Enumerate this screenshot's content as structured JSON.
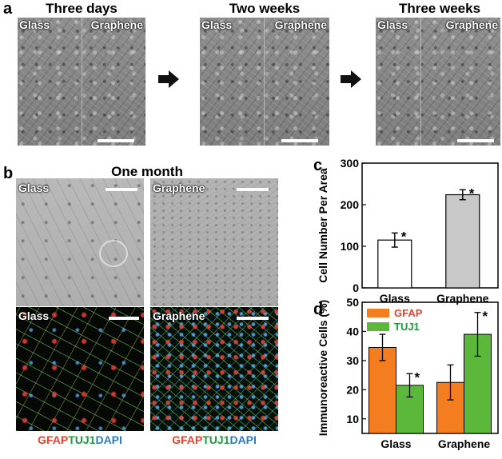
{
  "panel_a": {
    "label": "a",
    "titles": [
      "Three days",
      "Two weeks",
      "Three weeks"
    ],
    "substrate_left": "Glass",
    "substrate_right": "Graphene"
  },
  "panel_b": {
    "label": "b",
    "title": "One month",
    "labels": {
      "glass": "Glass",
      "graphene": "Graphene"
    },
    "stain_captions": [
      {
        "gfap": "GFAP",
        "tuj1": "TUJ1",
        "dapi": "DAPI"
      },
      {
        "gfap": "GFAP",
        "tuj1": "TUJ1",
        "dapi": "DAPI"
      }
    ]
  },
  "colors": {
    "gfap": "#e8412c",
    "tuj1": "#1d9a3a",
    "dapi": "#2b7bbf",
    "bar_glass": "#ffffff",
    "bar_graphene": "#c8c8c8",
    "bar_gfap": "#f47d20",
    "bar_tuj1": "#5cb83a"
  },
  "chart_data": [
    {
      "panel": "c",
      "type": "bar",
      "categories": [
        "Glass",
        "Graphene"
      ],
      "values": [
        115,
        224
      ],
      "errors": [
        17,
        12
      ],
      "significance": [
        "*",
        "*"
      ],
      "ylabel": "Cell Number Per Area",
      "ylim": [
        0,
        300
      ],
      "yticks": [
        0,
        100,
        200,
        300
      ]
    },
    {
      "panel": "d",
      "type": "bar",
      "categories": [
        "Glass",
        "Graphene"
      ],
      "series": [
        {
          "name": "GFAP",
          "values": [
            34.5,
            22.5
          ],
          "errors": [
            4.5,
            6
          ]
        },
        {
          "name": "TUJ1",
          "values": [
            21.5,
            39
          ],
          "errors": [
            4,
            7.5
          ]
        }
      ],
      "significance": [
        [
          "",
          "*"
        ],
        [
          "",
          "*"
        ]
      ],
      "ylabel": "Immunoreactive Cells (%)",
      "ylim": [
        5,
        50
      ],
      "yticks": [
        10,
        20,
        30,
        40,
        50
      ],
      "legend": "top-left"
    }
  ]
}
